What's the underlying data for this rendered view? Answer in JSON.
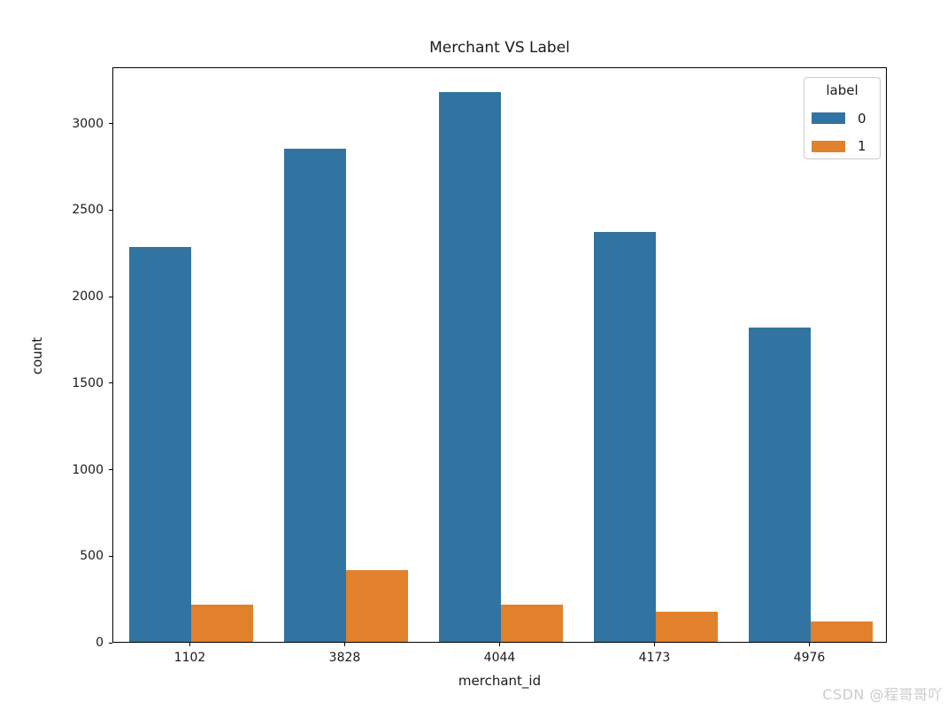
{
  "watermark": {
    "text": "CSDN @程哥哥吖",
    "color": "#cbcbcb"
  },
  "chart_data": {
    "type": "bar",
    "title": "Merchant VS Label",
    "xlabel": "merchant_id",
    "ylabel": "count",
    "categories": [
      "1102",
      "3828",
      "4044",
      "4173",
      "4976"
    ],
    "series": [
      {
        "name": "0",
        "color": "#3274a1",
        "values": [
          2280,
          2850,
          3175,
          2370,
          1815
        ]
      },
      {
        "name": "1",
        "color": "#e1812c",
        "values": [
          215,
          415,
          215,
          175,
          120
        ]
      }
    ],
    "ylim": [
      0,
      3325
    ],
    "yticks": [
      0,
      500,
      1000,
      1500,
      2000,
      2500,
      3000
    ],
    "legend": {
      "title": "label",
      "position": "upper right"
    },
    "grid": false,
    "spine_color": "#000000",
    "text_color": "#1a1a1a"
  }
}
